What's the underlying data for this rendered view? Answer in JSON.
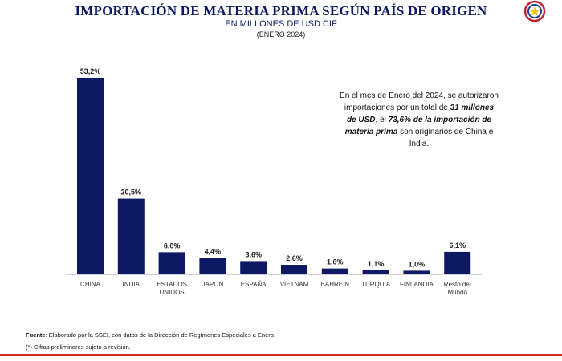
{
  "header": {
    "title": "IMPORTACIÓN DE MATERIA PRIMA SEGÚN PAÍS DE ORIGEN",
    "subtitle": "EN MILLONES DE USD CIF",
    "period": "(ENERO 2024)"
  },
  "note": {
    "part1": "En el mes de Enero del 2024, se autorizaron importaciones por un total de ",
    "bold1": "31 millones de USD",
    "part2": ",  el ",
    "bold2": "73,6% de la importación de materia prima",
    "part3": " son originarios de China e India."
  },
  "footer": {
    "source_label": "Fuente",
    "source_text": ": Elaborado por la SSEI, con datos de la Dirección de Regímenes Especiales a Enero.",
    "note": "(*) Cifras preliminares sujeto a revisión."
  },
  "colors": {
    "bar": "#0d1a63",
    "title": "#0d1a63",
    "accent_line": "#d8262b"
  },
  "chart_data": {
    "type": "bar",
    "categories": [
      "CHINA",
      "INDIA",
      "ESTADOS UNIDOS",
      "JAPON",
      "ESPAÑA",
      "VIETNAM",
      "BAHREIN",
      "TURQUIA",
      "FINLANDIA",
      "Resto del Mundo"
    ],
    "category_lines": [
      [
        "CHINA"
      ],
      [
        "INDIA"
      ],
      [
        "ESTADOS",
        "UNIDOS"
      ],
      [
        "JAPON"
      ],
      [
        "ESPAÑA"
      ],
      [
        "VIETNAM"
      ],
      [
        "BAHREIN"
      ],
      [
        "TURQUIA"
      ],
      [
        "FINLANDIA"
      ],
      [
        "Resto del",
        "Mundo"
      ]
    ],
    "values": [
      53.2,
      20.5,
      6.0,
      4.4,
      3.6,
      2.6,
      1.6,
      1.1,
      1.0,
      6.1
    ],
    "labels": [
      "53,2%",
      "20,5%",
      "6,0%",
      "4,4%",
      "3,6%",
      "2,6%",
      "1,6%",
      "1,1%",
      "1,0%",
      "6,1%"
    ],
    "unit": "%",
    "ylim": [
      0,
      53.2
    ],
    "grid": false,
    "legend": "none"
  }
}
